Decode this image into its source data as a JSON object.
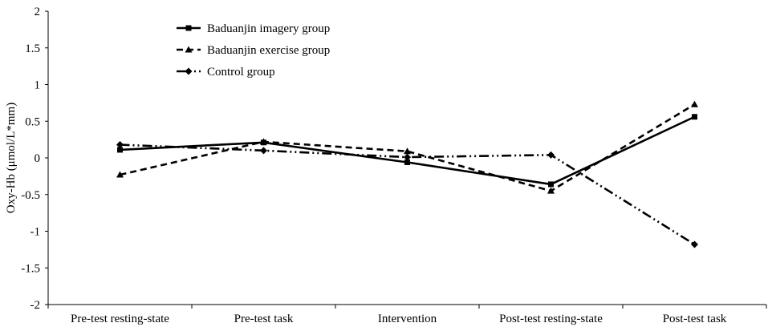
{
  "chart_data": {
    "type": "line",
    "title": "",
    "xlabel": "",
    "ylabel": "Oxy-Hb (μmol/L*mm)",
    "ylim": [
      -2,
      2
    ],
    "yticks": [
      2,
      1.5,
      1,
      0.5,
      0,
      -0.5,
      -1,
      -1.5,
      -2
    ],
    "ytick_labels": [
      "2",
      "1.5",
      "1",
      "0.5",
      "0",
      "-0.5",
      "-1",
      "-1.5",
      "-2"
    ],
    "categories": [
      "Pre-test resting-state",
      "Pre-test task",
      "Intervention",
      "Post-test resting-state",
      "Post-test task"
    ],
    "legend_position": "top-left",
    "grid": false,
    "series": [
      {
        "name": "Baduanjin imagery group",
        "values": [
          0.11,
          0.21,
          -0.06,
          -0.36,
          0.56
        ],
        "line_style": "solid",
        "marker": "square"
      },
      {
        "name": "Baduanjin exercise group",
        "values": [
          -0.23,
          0.22,
          0.09,
          -0.45,
          0.73
        ],
        "line_style": "dashed",
        "marker": "triangle"
      },
      {
        "name": "Control group",
        "values": [
          0.18,
          0.1,
          0.01,
          0.04,
          -1.18
        ],
        "line_style": "dashdotdot",
        "marker": "diamond"
      }
    ]
  }
}
